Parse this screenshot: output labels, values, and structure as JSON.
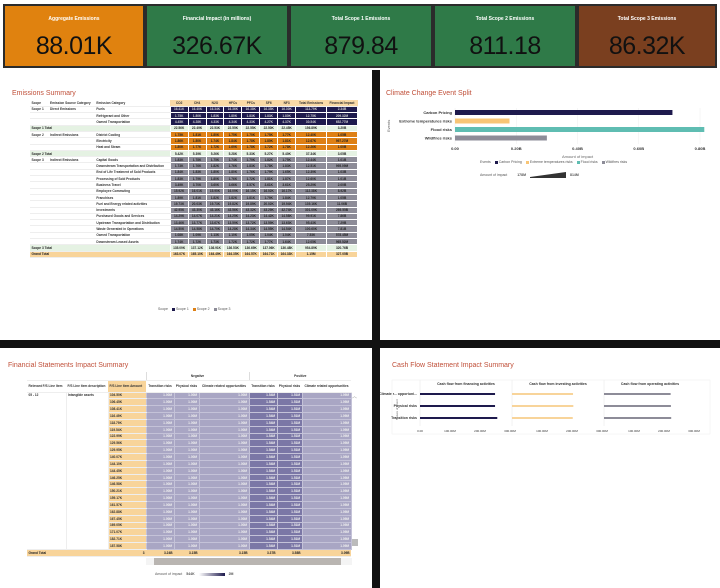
{
  "kpis": [
    {
      "title": "Aggregate Emissions",
      "value": "88.01K",
      "color": "#e0820f"
    },
    {
      "title": "Financial Impact (in millions)",
      "value": "326.67K",
      "color": "#2f7a48"
    },
    {
      "title": "Total Scope 1 Emissions",
      "value": "879.84",
      "color": "#2f7a48"
    },
    {
      "title": "Total Scope 2 Emissions",
      "value": "811.18",
      "color": "#2f7a48"
    },
    {
      "title": "Total Scope 3 Emissions",
      "value": "86.32K",
      "color": "#7a3f1f"
    }
  ],
  "emissions": {
    "title": "Emissions Summary",
    "headers": [
      "Scope",
      "Emission Source Category",
      "Emission Category",
      "CO2",
      "CH4",
      "N2O",
      "HFCs",
      "PFCs",
      "SF6",
      "NF3",
      "Total Emissions",
      "Financial Impact"
    ],
    "rows": [
      {
        "type": "s1",
        "scope": "Scope 1",
        "cat": "Direct Emissions",
        "item": "Fuels",
        "vals": [
          "16.41K",
          "16.40K",
          "16.34K",
          "16.36K",
          "16.38K",
          "16.35K",
          "16.30K",
          "113.79K",
          "2.34B"
        ]
      },
      {
        "type": "s1",
        "scope": "",
        "cat": "",
        "item": "Refrigerant and Other",
        "vals": [
          "1.75K",
          "1.80K",
          "1.83K",
          "1.80K",
          "1.83K",
          "1.83K",
          "1.80K",
          "12.75K",
          "209.32M"
        ]
      },
      {
        "type": "s1",
        "scope": "",
        "cat": "",
        "item": "Owned Transportation",
        "vals": [
          "4.45K",
          "4.28K",
          "4.33K",
          "4.34K",
          "4.33K",
          "4.27K",
          "4.37K",
          "30.54K",
          "652.77M"
        ]
      },
      {
        "type": "tot",
        "scope": "Scope 1 Total",
        "cat": "",
        "item": "",
        "vals": [
          "22.56K",
          "22.49K",
          "22.53K",
          "22.55K",
          "22.55K",
          "22.50K",
          "22.45K",
          "156.89K",
          "3.20B"
        ]
      },
      {
        "type": "s2",
        "scope": "Scope 2",
        "cat": "Indirect Emissions",
        "item": "District Cooling",
        "vals": [
          "1.75K",
          "1.81K",
          "1.80K",
          "1.75K",
          "1.70K",
          "1.75K",
          "1.77K",
          "12.40K",
          "1.05B"
        ]
      },
      {
        "type": "s2",
        "scope": "",
        "cat": "",
        "item": "Electricity",
        "vals": [
          "1.86K",
          "1.80K",
          "1.74K",
          "1.84K",
          "1.78K",
          "1.80K",
          "1.81K",
          "12.67K",
          "997.27M"
        ]
      },
      {
        "type": "s2",
        "scope": "",
        "cat": "",
        "item": "Heat and Steam",
        "vals": [
          "1.80K",
          "1.77K",
          "1.72K",
          "1.69K",
          "1.78K",
          "1.72K",
          "1.78K",
          "12.26K",
          "1.00B"
        ]
      },
      {
        "type": "tot",
        "scope": "Scope 2 Total",
        "cat": "",
        "item": "",
        "vals": [
          "5.42K",
          "5.39K",
          "5.26K",
          "5.28K",
          "5.33K",
          "5.27K",
          "5.40K",
          "37.34K",
          "3.05B"
        ]
      },
      {
        "type": "s3",
        "scope": "Scope 3",
        "cat": "Indirect Emissions",
        "item": "Capital Goods",
        "vals": [
          "1.83K",
          "1.78K",
          "1.75K",
          "1.74K",
          "1.79K",
          "1.82K",
          "1.75K",
          "12.44K",
          "1.01B"
        ]
      },
      {
        "type": "s3",
        "scope": "",
        "cat": "",
        "item": "Downstream Transportation and Distribution",
        "vals": [
          "1.73K",
          "1.76K",
          "1.82K",
          "1.76K",
          "1.83K",
          "1.78K",
          "1.83K",
          "12.51K",
          "995.09M"
        ]
      },
      {
        "type": "s3",
        "scope": "",
        "cat": "",
        "item": "End of Life Treatment of Sold Products",
        "vals": [
          "1.84K",
          "1.83K",
          "1.80K",
          "1.80K",
          "1.76K",
          "1.79K",
          "1.65K",
          "12.39K",
          "1.03B"
        ]
      },
      {
        "type": "s3",
        "scope": "",
        "cat": "",
        "item": "Processing of Sold Products",
        "vals": [
          "1.83K",
          "1.79K",
          "1.80K",
          "1.76K",
          "1.72K",
          "1.81K",
          "1.87K",
          "12.60K",
          "1.01B"
        ]
      },
      {
        "type": "s3",
        "scope": "",
        "cat": "",
        "item": "Business Travel",
        "vals": [
          "3.49K",
          "3.70K",
          "3.60K",
          "3.66K",
          "3.57K",
          "3.61K",
          "3.61K",
          "25.29K",
          "2.00B"
        ]
      },
      {
        "type": "s3",
        "scope": "",
        "cat": "",
        "item": "Employee Commuting",
        "vals": [
          "15.92K",
          "16.01K",
          "15.90K",
          "16.09K",
          "16.15K",
          "16.02K",
          "16.17K",
          "112.38K",
          "8.92B"
        ]
      },
      {
        "type": "s3",
        "scope": "",
        "cat": "",
        "item": "Franchises",
        "vals": [
          "1.89K",
          "1.81K",
          "1.82K",
          "1.82K",
          "1.81K",
          "1.79K",
          "1.84K",
          "12.79K",
          "1.05B"
        ]
      },
      {
        "type": "s3",
        "scope": "",
        "cat": "",
        "item": "Fuel and Energy related activities",
        "vals": [
          "19.73K",
          "20.03K",
          "19.73K",
          "19.82K",
          "19.89K",
          "20.02K",
          "19.94K",
          "139.16K",
          "11.06B"
        ]
      },
      {
        "type": "s3",
        "scope": "",
        "cat": "",
        "item": "Investments",
        "vals": [
          "42.95K",
          "43.30K",
          "43.16K",
          "43.56K",
          "43.32K",
          "43.29K",
          "42.74K",
          "301.09K",
          "269.55B"
        ]
      },
      {
        "type": "s3",
        "scope": "",
        "cat": "",
        "item": "Purchased Goods and Services",
        "vals": [
          "14.29K",
          "14.07K",
          "14.21K",
          "14.25K",
          "14.23K",
          "14.42K",
          "14.58K",
          "99.91K",
          "7.86B"
        ]
      },
      {
        "type": "s3",
        "scope": "",
        "cat": "",
        "item": "Upstream Transportation and Distribution",
        "vals": [
          "13.46K",
          "13.77K",
          "13.67K",
          "13.59K",
          "13.72K",
          "13.59K",
          "13.63K",
          "95.43K",
          "7.29B"
        ]
      },
      {
        "type": "s3",
        "scope": "",
        "cat": "",
        "item": "Waste Generated in Operations",
        "vals": [
          "14.50K",
          "14.58K",
          "14.70K",
          "14.28K",
          "14.34K",
          "14.55K",
          "14.54K",
          "100.60K",
          "7.81B"
        ]
      },
      {
        "type": "s3",
        "scope": "",
        "cat": "",
        "item": "Owned Transportation",
        "vals": [
          "1.08K",
          "1.09K",
          "1.13K",
          "1.10K",
          "1.05K",
          "1.04K",
          "1.04K",
          "7.53K",
          "578.45M"
        ]
      },
      {
        "type": "s3",
        "scope": "",
        "cat": "",
        "item": "Downstream Leased Assets",
        "vals": [
          "1.74K",
          "1.72K",
          "1.73K",
          "1.72K",
          "1.72K",
          "1.77K",
          "1.64K",
          "12.05K",
          "965.52M"
        ]
      },
      {
        "type": "tot",
        "scope": "Scope 3 Total",
        "cat": "",
        "item": "",
        "vals": [
          "135.09K",
          "137.12K",
          "136.91K",
          "136.53K",
          "136.69K",
          "137.06K",
          "136.48K",
          "954.89K",
          "320.76B"
        ]
      },
      {
        "type": "gt",
        "scope": "Grand Total",
        "cat": "",
        "item": "",
        "vals": [
          "163.07K",
          "165.10K",
          "164.49K",
          "164.35K",
          "164.57K",
          "164.71K",
          "164.33K",
          "1.15M",
          "327.05B"
        ]
      }
    ],
    "legend": {
      "title": "Scope",
      "items": [
        {
          "label": "Scope 1",
          "color": "#1e1a4d"
        },
        {
          "label": "Scope 2",
          "color": "#de8015"
        },
        {
          "label": "Scope 3",
          "color": "#8d8c98"
        }
      ]
    }
  },
  "climate": {
    "title": "Climate Change Event Split",
    "chart_data": {
      "type": "bar",
      "orientation": "horizontal",
      "categories": [
        "Carbon Pricing",
        "Extreme temperatures risks",
        "Flood risks",
        "Wildfires risks"
      ],
      "values": [
        710000000,
        178000000,
        814000000,
        300000000
      ],
      "colors": [
        "#1e1a4d",
        "#f8c576",
        "#5fbdb2",
        "#8d8c98"
      ],
      "xlabel": "Amount of impact",
      "ylabel": "Events",
      "xlim": [
        0,
        800000000
      ],
      "ticks": [
        "0.00",
        "0.20B",
        "0.40B",
        "0.60B",
        "0.80B"
      ],
      "grid": true
    },
    "legend_title": "Events",
    "gradient_label": "Amount of impact",
    "gradient_min": "178M",
    "gradient_max": "814M"
  },
  "financial": {
    "title": "Financial Statements Impact Summary",
    "group_negative": "Negative",
    "group_positive": "Positive",
    "headers": [
      "Relevant F/S Line Item",
      "F/S Line Item description",
      "F/S Line Item Amount",
      "Transition risks",
      "Physical risks",
      "Climate related opportunities",
      "Transition risks",
      "Physical risks",
      "Climate related opportunities"
    ],
    "first_item": "05 - 12",
    "first_desc": "Intangible assets",
    "amounts": [
      "104.50K",
      "106.45K",
      "108.41K",
      "116.49K",
      "118.79K",
      "119.54K",
      "122.99K",
      "129.56K",
      "129.95K",
      "140.07K",
      "144.10K",
      "144.45K",
      "146.25K",
      "146.58K",
      "150.21K",
      "159.17K",
      "161.57K",
      "162.88K",
      "167.45K",
      "169.05K",
      "171.07K",
      "182.71K",
      "187.58K"
    ],
    "row_values": [
      "1.00M",
      "1.00M",
      "1.00M",
      "1.54M",
      "1.51M",
      "1.09M"
    ],
    "grand_total": {
      "label": "Grand Total",
      "amount": "3",
      "vals": [
        "3.24B",
        "3.15B",
        "3.15B",
        "3.37B",
        "3.58B",
        "3.09B"
      ]
    },
    "gradient_label": "Amount of impact",
    "gradient_min": "544K",
    "gradient_max": "2M"
  },
  "cashflow": {
    "title": "Cash Flow Statement Impact Summary",
    "chart_data": {
      "type": "bar",
      "orientation": "horizontal",
      "categories": [
        "Climate r... opportuni...",
        "Physical risks",
        "Transition risks"
      ],
      "ylabel": "Nature of Event",
      "xlabel": "Amount of impact",
      "xlim": [
        0,
        300000000
      ],
      "ticks": [
        "0.00",
        "100.00M",
        "200.00M",
        "300.00M"
      ],
      "panels": [
        {
          "name": "Cash flow from financing activities",
          "color": "#1e1a4d",
          "values": [
            268000000,
            268000000,
            276000000
          ]
        },
        {
          "name": "Cash flow from investing activities",
          "color": "#f8d49a",
          "values": [
            218000000,
            219000000,
            217000000
          ]
        },
        {
          "name": "Cash flow from operating activities",
          "color": "#8d8c98",
          "values": [
            238000000,
            239000000,
            240000000
          ]
        }
      ]
    }
  }
}
